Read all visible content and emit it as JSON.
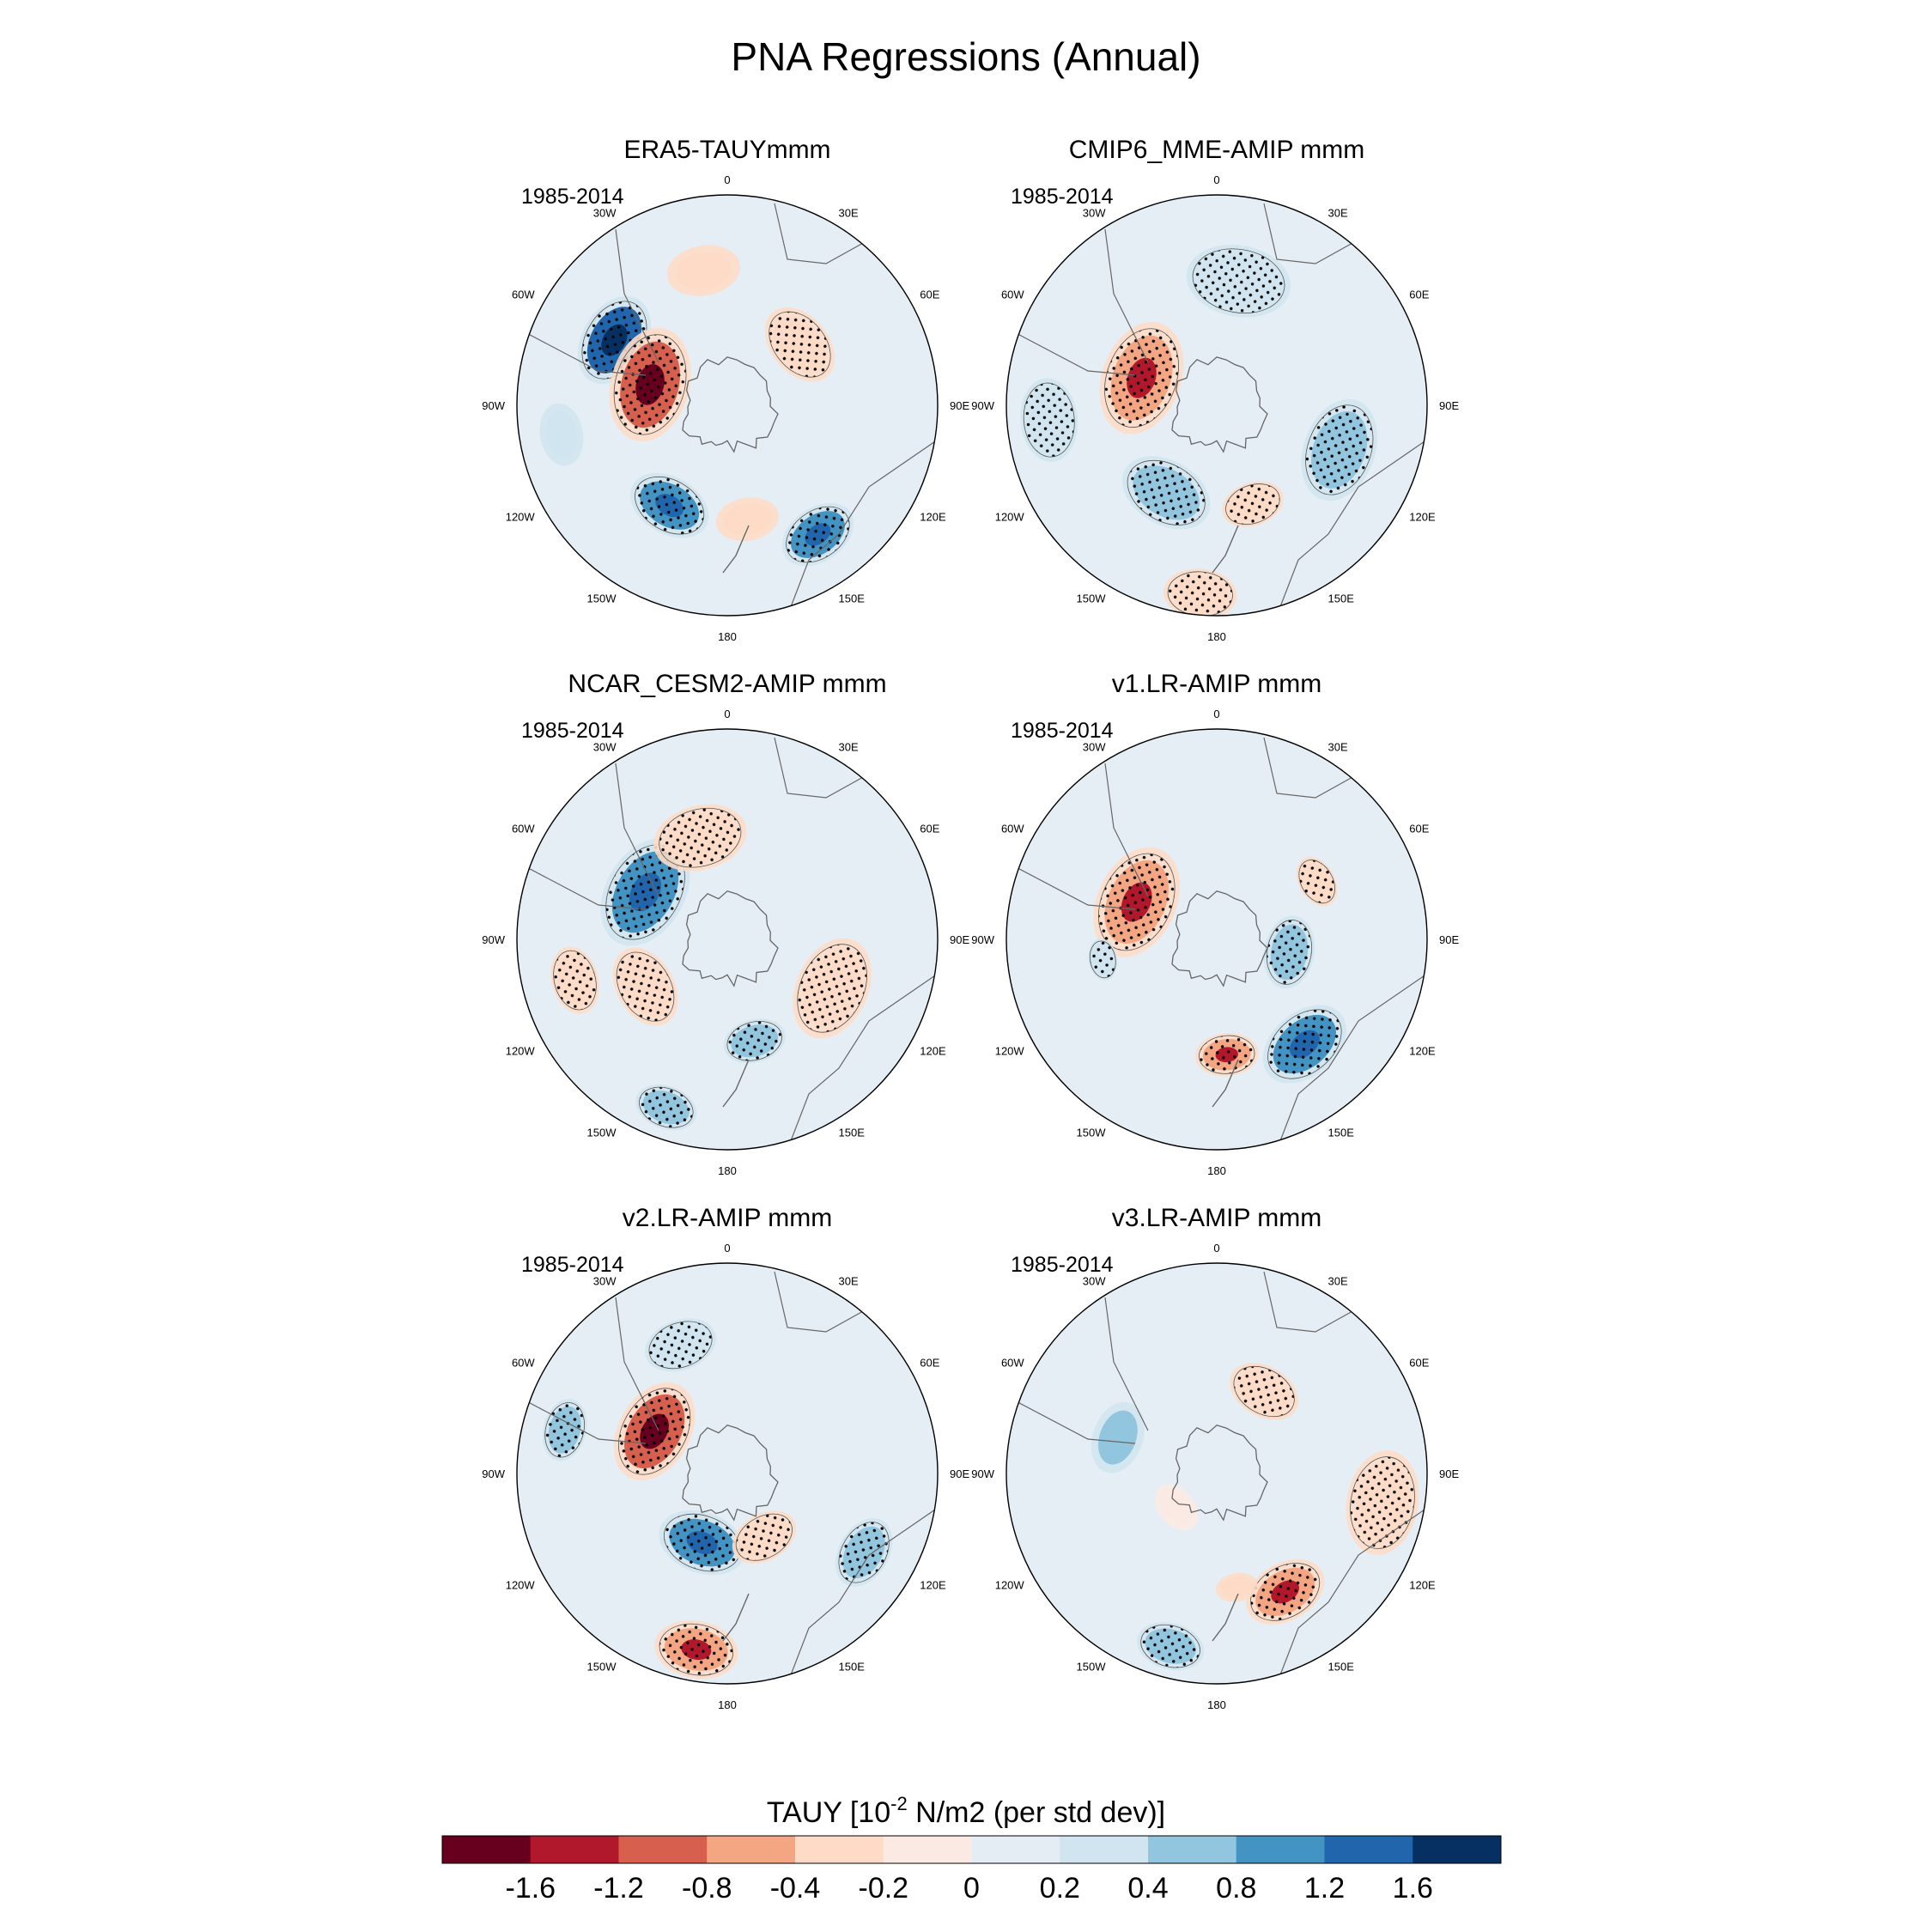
{
  "chart_data": {
    "type": "heatmap",
    "projection": "south-polar-stereographic",
    "title": "PNA Regressions (Annual)",
    "colorbar": {
      "label_main": "TAUY [10",
      "label_exp": "-2",
      "label_tail": " N/m2 (per std dev)]",
      "ticks": [
        "-1.6",
        "-1.2",
        "-0.8",
        "-0.4",
        "-0.2",
        "0",
        "0.2",
        "0.4",
        "0.8",
        "1.2",
        "1.6"
      ],
      "levels": [
        -1.6,
        -1.2,
        -0.8,
        -0.4,
        -0.2,
        0,
        0.2,
        0.4,
        0.8,
        1.2,
        1.6
      ],
      "colors": [
        "#67001f",
        "#b2182b",
        "#d6604d",
        "#f4a582",
        "#fddbc7",
        "#fbeae3",
        "#e4edf4",
        "#d1e5f0",
        "#92c5de",
        "#4393c3",
        "#2166ac",
        "#053061"
      ]
    },
    "lon_labels": [
      "0",
      "30E",
      "60E",
      "90E",
      "120E",
      "150E",
      "180",
      "150W",
      "120W",
      "90W",
      "60W",
      "30W"
    ],
    "panels": [
      {
        "title": "ERA5-TAUYmmm",
        "period": "1985-2014",
        "features": [
          {
            "lon": -60,
            "r": 0.62,
            "size": 0.18,
            "value": 1.2,
            "stipple": true
          },
          {
            "lon": -75,
            "r": 0.38,
            "size": 0.22,
            "value": -1.2,
            "stipple": true
          },
          {
            "lon": -150,
            "r": 0.55,
            "size": 0.16,
            "value": 0.8,
            "stipple": true
          },
          {
            "lon": -10,
            "r": 0.65,
            "size": 0.14,
            "value": -0.4,
            "stipple": false
          },
          {
            "lon": 50,
            "r": 0.45,
            "size": 0.16,
            "value": -0.4,
            "stipple": true
          },
          {
            "lon": 145,
            "r": 0.75,
            "size": 0.15,
            "value": 0.8,
            "stipple": true
          },
          {
            "lon": 170,
            "r": 0.55,
            "size": 0.12,
            "value": -0.4,
            "stipple": false
          },
          {
            "lon": -100,
            "r": 0.8,
            "size": 0.12,
            "value": 0.2,
            "stipple": false
          }
        ]
      },
      {
        "title": "CMIP6_MME-AMIP  mmm",
        "period": "1985-2014",
        "features": [
          {
            "lon": -70,
            "r": 0.38,
            "size": 0.22,
            "value": -0.8,
            "stipple": true
          },
          {
            "lon": -150,
            "r": 0.48,
            "size": 0.18,
            "value": 0.4,
            "stipple": true
          },
          {
            "lon": 10,
            "r": 0.6,
            "size": 0.2,
            "value": 0.2,
            "stipple": true
          },
          {
            "lon": 110,
            "r": 0.62,
            "size": 0.2,
            "value": 0.4,
            "stipple": true
          },
          {
            "lon": -95,
            "r": 0.8,
            "size": 0.16,
            "value": 0.2,
            "stipple": true
          },
          {
            "lon": -175,
            "r": 0.9,
            "size": 0.14,
            "value": -0.4,
            "stipple": true
          },
          {
            "lon": 160,
            "r": 0.5,
            "size": 0.12,
            "value": -0.4,
            "stipple": true
          }
        ]
      },
      {
        "title": "NCAR_CESM2-AMIP  mmm",
        "period": "1985-2014",
        "features": [
          {
            "lon": -60,
            "r": 0.45,
            "size": 0.22,
            "value": 0.8,
            "stipple": true
          },
          {
            "lon": -15,
            "r": 0.5,
            "size": 0.18,
            "value": -0.4,
            "stipple": true
          },
          {
            "lon": -120,
            "r": 0.45,
            "size": 0.16,
            "value": -0.4,
            "stipple": true
          },
          {
            "lon": -105,
            "r": 0.75,
            "size": 0.13,
            "value": -0.4,
            "stipple": true
          },
          {
            "lon": 115,
            "r": 0.55,
            "size": 0.2,
            "value": -0.4,
            "stipple": true
          },
          {
            "lon": 165,
            "r": 0.5,
            "size": 0.12,
            "value": 0.4,
            "stipple": true
          },
          {
            "lon": -160,
            "r": 0.85,
            "size": 0.12,
            "value": 0.4,
            "stipple": true
          }
        ]
      },
      {
        "title": "v1.LR-AMIP  mmm",
        "period": "1985-2014",
        "features": [
          {
            "lon": -65,
            "r": 0.42,
            "size": 0.22,
            "value": -0.8,
            "stipple": true
          },
          {
            "lon": 140,
            "r": 0.65,
            "size": 0.18,
            "value": 0.8,
            "stipple": true
          },
          {
            "lon": 175,
            "r": 0.55,
            "size": 0.12,
            "value": -0.8,
            "stipple": true
          },
          {
            "lon": 100,
            "r": 0.35,
            "size": 0.14,
            "value": 0.4,
            "stipple": true
          },
          {
            "lon": 60,
            "r": 0.55,
            "size": 0.1,
            "value": -0.4,
            "stipple": true
          },
          {
            "lon": -100,
            "r": 0.55,
            "size": 0.08,
            "value": 0.2,
            "stipple": true
          }
        ]
      },
      {
        "title": "v2.LR-AMIP  mmm",
        "period": "1985-2014",
        "features": [
          {
            "lon": -60,
            "r": 0.4,
            "size": 0.2,
            "value": -1.2,
            "stipple": true
          },
          {
            "lon": -160,
            "r": 0.35,
            "size": 0.17,
            "value": 0.8,
            "stipple": true
          },
          {
            "lon": 150,
            "r": 0.35,
            "size": 0.13,
            "value": -0.4,
            "stipple": true
          },
          {
            "lon": -170,
            "r": 0.85,
            "size": 0.16,
            "value": -0.8,
            "stipple": true
          },
          {
            "lon": -20,
            "r": 0.65,
            "size": 0.14,
            "value": 0.2,
            "stipple": true
          },
          {
            "lon": -75,
            "r": 0.8,
            "size": 0.12,
            "value": 0.4,
            "stipple": true
          },
          {
            "lon": 120,
            "r": 0.75,
            "size": 0.14,
            "value": 0.4,
            "stipple": true
          }
        ]
      },
      {
        "title": "v3.LR-AMIP  mmm",
        "period": "1985-2014",
        "features": [
          {
            "lon": -70,
            "r": 0.5,
            "size": 0.14,
            "value": 0.4,
            "stipple": false
          },
          {
            "lon": 30,
            "r": 0.45,
            "size": 0.14,
            "value": -0.4,
            "stipple": true
          },
          {
            "lon": 100,
            "r": 0.8,
            "size": 0.2,
            "value": -0.4,
            "stipple": true
          },
          {
            "lon": 150,
            "r": 0.65,
            "size": 0.16,
            "value": -0.8,
            "stipple": true
          },
          {
            "lon": -165,
            "r": 0.85,
            "size": 0.13,
            "value": 0.4,
            "stipple": true
          },
          {
            "lon": -130,
            "r": 0.25,
            "size": 0.1,
            "value": -0.2,
            "stipple": false
          },
          {
            "lon": 170,
            "r": 0.55,
            "size": 0.08,
            "value": -0.4,
            "stipple": false
          }
        ]
      }
    ]
  }
}
